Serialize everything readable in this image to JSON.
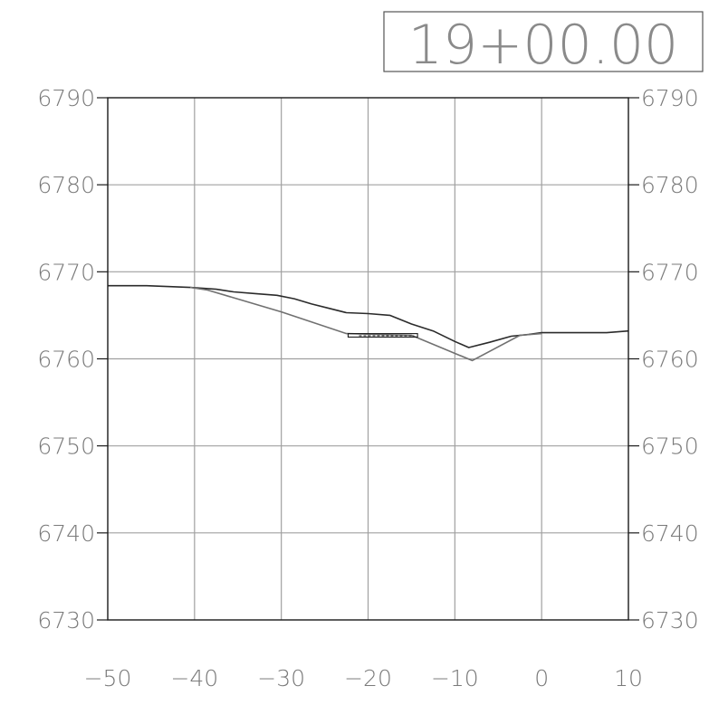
{
  "chart_data": {
    "type": "line",
    "title": "19+00.00",
    "xlabel": "",
    "ylabel": "",
    "xlim": [
      -50,
      10
    ],
    "ylim": [
      6730,
      6790
    ],
    "x_ticks": [
      -50,
      -40,
      -30,
      -20,
      -10,
      0,
      10
    ],
    "x_tick_labels": [
      "−50",
      "−40",
      "−30",
      "−20",
      "−10",
      "0",
      "10"
    ],
    "y_ticks": [
      6730,
      6740,
      6750,
      6760,
      6770,
      6780,
      6790
    ],
    "y_tick_labels": [
      "6730",
      "6740",
      "6750",
      "6760",
      "6770",
      "6780",
      "6790"
    ],
    "grid": true,
    "colors": {
      "frame": "#1a1a1a",
      "grid": "#a0a0a0",
      "existing": "#2b2b2b",
      "proposed": "#707070",
      "text": "#7a7a7a"
    },
    "series": [
      {
        "x": [
          -50,
          -45.5,
          -40.5,
          -37.5,
          -35.5,
          -33,
          -30.5,
          -28.5,
          -26.5,
          -24.5,
          -22.5,
          -20,
          -17.5,
          -15,
          -12.5,
          -10,
          -8.4,
          -6,
          -3.5,
          -1.5,
          0,
          2.5,
          5,
          7.5,
          10
        ],
        "y": [
          6768.4,
          6768.4,
          6768.2,
          6768.0,
          6767.7,
          6767.5,
          6767.3,
          6766.9,
          6766.3,
          6765.8,
          6765.3,
          6765.2,
          6765.0,
          6764.0,
          6763.2,
          6762.0,
          6761.3,
          6761.9,
          6762.6,
          6762.8,
          6763.0,
          6763.0,
          6763.0,
          6763.0,
          6763.2
        ]
      },
      {
        "x": [
          -40.5,
          -38.5,
          -30,
          -22.5,
          -15,
          -8,
          -2.5,
          0
        ],
        "y": [
          6768.2,
          6767.9,
          6765.4,
          6762.9,
          6762.7,
          6759.8,
          6762.7,
          6762.9
        ]
      }
    ],
    "structure": {
      "x_start": -22.3,
      "x_end": -14.3,
      "y_top": 6762.9,
      "y_bottom": 6762.5
    }
  }
}
